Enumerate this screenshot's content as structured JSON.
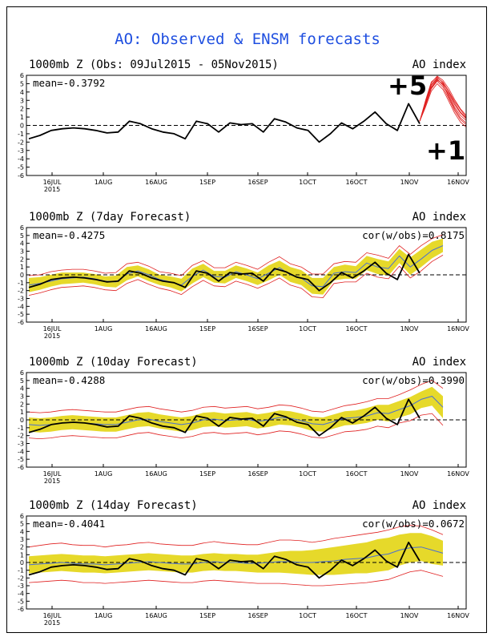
{
  "title": "AO: Observed & ENSM forecasts",
  "annotations": [
    "+5",
    "+1"
  ],
  "colors": {
    "title": "#1f4fe0",
    "observed": "#000000",
    "spread": "#e6d92a",
    "bounds": "#e02020",
    "ensemble_mean": "#4a6fd1",
    "zero_line": "#000000"
  },
  "chart_data": [
    {
      "type": "line",
      "title": "1000mb Z (Obs: 09Jul2015 - 05Nov2015)",
      "right_label": "AO index",
      "stat_mean": "mean=-0.3792",
      "stat_cor": "",
      "ylim": [
        -6,
        6
      ],
      "yticks": [
        "6",
        "5",
        "4",
        "3",
        "2",
        "1",
        "0",
        "-1",
        "-2",
        "-3",
        "-4",
        "-5",
        "-6"
      ],
      "xticks": [
        "16JUL",
        "1AUG",
        "16AUG",
        "1SEP",
        "16SEP",
        "1OCT",
        "16OCT",
        "1NOV",
        "16NOV"
      ],
      "xyear": "2015",
      "zero_dashed": true,
      "observed": [
        -1.6,
        -1.2,
        -0.6,
        -0.4,
        -0.3,
        -0.4,
        -0.6,
        -0.9,
        -0.8,
        0.5,
        0.2,
        -0.4,
        -0.8,
        -1.0,
        -1.6,
        0.5,
        0.2,
        -0.8,
        0.3,
        0.1,
        0.2,
        -0.8,
        0.8,
        0.4,
        -0.3,
        -0.6,
        -2.0,
        -1.0,
        0.3,
        -0.4,
        0.5,
        1.6,
        0.2,
        -0.6,
        2.6,
        0.2
      ],
      "members": [
        [
          0.5,
          2.6,
          4.6,
          5.5,
          4.9,
          3.6,
          2.2,
          1.2,
          0.6
        ],
        [
          0.5,
          2.8,
          4.9,
          5.7,
          5.2,
          4.1,
          2.9,
          1.9,
          1.0
        ],
        [
          0.5,
          2.4,
          4.4,
          5.3,
          4.6,
          3.2,
          1.8,
          0.7,
          0.1
        ],
        [
          0.5,
          2.9,
          5.1,
          5.9,
          5.4,
          4.4,
          3.1,
          2.0,
          1.2
        ],
        [
          0.5,
          2.2,
          4.1,
          5.0,
          4.3,
          2.9,
          1.5,
          0.4,
          -0.2
        ],
        [
          0.5,
          2.7,
          4.8,
          5.6,
          4.8,
          3.8,
          2.5,
          1.5,
          0.8
        ],
        [
          0.5,
          2.5,
          4.5,
          5.4,
          5.0,
          3.4,
          2.0,
          0.9,
          0.3
        ],
        [
          0.5,
          3.0,
          5.2,
          5.8,
          5.1,
          4.0,
          2.7,
          1.6,
          0.9
        ]
      ]
    },
    {
      "type": "line",
      "title": "1000mb Z (7day Forecast)",
      "right_label": "AO index",
      "stat_mean": "mean=-0.4275",
      "stat_cor": "cor(w/obs)=0.8175",
      "ylim": [
        -6,
        6
      ],
      "yticks": [
        "6",
        "5",
        "4",
        "3",
        "2",
        "1",
        "0",
        "-1",
        "-2",
        "-3",
        "-4",
        "-5",
        "-6"
      ],
      "xticks": [
        "16JUL",
        "1AUG",
        "16AUG",
        "1SEP",
        "16SEP",
        "1OCT",
        "16OCT",
        "1NOV",
        "16NOV"
      ],
      "xyear": "2015",
      "zero_dashed": true,
      "observed": [
        -1.6,
        -1.2,
        -0.6,
        -0.4,
        -0.3,
        -0.4,
        -0.6,
        -0.9,
        -0.8,
        0.5,
        0.2,
        -0.4,
        -0.8,
        -1.0,
        -1.6,
        0.5,
        0.2,
        -0.8,
        0.3,
        0.1,
        0.2,
        -0.8,
        0.8,
        0.4,
        -0.3,
        -0.6,
        -2.0,
        -1.0,
        0.3,
        -0.4,
        0.5,
        1.6,
        0.2,
        -0.6,
        2.6,
        0.2
      ],
      "ensemble_mean": [
        -1.3,
        -1.1,
        -0.8,
        -0.5,
        -0.4,
        -0.3,
        -0.5,
        -0.8,
        -0.9,
        0.1,
        0.5,
        0.0,
        -0.6,
        -0.9,
        -1.3,
        -0.2,
        0.6,
        -0.2,
        -0.3,
        0.4,
        0.0,
        -0.5,
        0.2,
        0.9,
        0.0,
        -0.4,
        -1.4,
        -1.5,
        0.2,
        0.4,
        0.3,
        1.5,
        1.0,
        0.8,
        2.4,
        1.0,
        2.0,
        3.1,
        3.7
      ],
      "spread_upper": [
        -0.4,
        -0.3,
        0.0,
        0.3,
        0.3,
        0.3,
        0.1,
        -0.2,
        -0.1,
        1.0,
        1.2,
        0.7,
        0.0,
        -0.2,
        -0.5,
        0.8,
        1.4,
        0.5,
        0.5,
        1.2,
        0.8,
        0.3,
        1.2,
        1.8,
        1.0,
        0.6,
        -0.4,
        -0.4,
        1.0,
        1.3,
        1.1,
        2.4,
        2.0,
        1.7,
        3.3,
        2.2,
        3.2,
        4.2,
        4.6
      ],
      "spread_lower": [
        -2.2,
        -1.9,
        -1.5,
        -1.2,
        -1.1,
        -1.0,
        -1.2,
        -1.5,
        -1.6,
        -0.7,
        -0.2,
        -0.8,
        -1.3,
        -1.6,
        -2.1,
        -1.1,
        -0.3,
        -1.0,
        -1.1,
        -0.4,
        -0.8,
        -1.3,
        -0.7,
        0.0,
        -0.9,
        -1.3,
        -2.4,
        -2.5,
        -0.7,
        -0.5,
        -0.5,
        0.6,
        0.1,
        -0.1,
        1.5,
        0.0,
        1.0,
        2.1,
        2.9
      ],
      "bound_upper": [
        -0.1,
        0.0,
        0.4,
        0.6,
        0.7,
        0.7,
        0.5,
        0.2,
        0.3,
        1.4,
        1.6,
        1.1,
        0.4,
        0.2,
        -0.1,
        1.2,
        1.8,
        0.9,
        0.9,
        1.6,
        1.2,
        0.7,
        1.6,
        2.3,
        1.4,
        1.0,
        0.1,
        0.1,
        1.4,
        1.7,
        1.6,
        2.8,
        2.5,
        2.1,
        3.7,
        2.6,
        3.7,
        4.6,
        5.1
      ],
      "bound_lower": [
        -2.6,
        -2.3,
        -1.9,
        -1.6,
        -1.5,
        -1.4,
        -1.6,
        -1.9,
        -2.0,
        -1.1,
        -0.6,
        -1.2,
        -1.7,
        -2.0,
        -2.5,
        -1.5,
        -0.7,
        -1.4,
        -1.5,
        -0.8,
        -1.2,
        -1.7,
        -1.1,
        -0.4,
        -1.3,
        -1.7,
        -2.8,
        -2.9,
        -1.1,
        -0.9,
        -0.9,
        0.2,
        -0.3,
        -0.5,
        1.1,
        -0.4,
        0.5,
        1.7,
        2.5
      ]
    },
    {
      "type": "line",
      "title": "1000mb Z (10day Forecast)",
      "right_label": "AO index",
      "stat_mean": "mean=-0.4288",
      "stat_cor": "cor(w/obs)=0.3990",
      "ylim": [
        -6,
        6
      ],
      "yticks": [
        "6",
        "5",
        "4",
        "3",
        "2",
        "1",
        "0",
        "-1",
        "-2",
        "-3",
        "-4",
        "-5",
        "-6"
      ],
      "xticks": [
        "16JUL",
        "1AUG",
        "16AUG",
        "1SEP",
        "16SEP",
        "1OCT",
        "16OCT",
        "1NOV",
        "16NOV"
      ],
      "xyear": "2015",
      "zero_dashed": true,
      "observed": [
        -1.6,
        -1.2,
        -0.6,
        -0.4,
        -0.3,
        -0.4,
        -0.6,
        -0.9,
        -0.8,
        0.5,
        0.2,
        -0.4,
        -0.8,
        -1.0,
        -1.6,
        0.5,
        0.2,
        -0.8,
        0.3,
        0.1,
        0.2,
        -0.8,
        0.8,
        0.4,
        -0.3,
        -0.6,
        -2.0,
        -1.0,
        0.3,
        -0.4,
        0.5,
        1.6,
        0.2,
        -0.6,
        2.6,
        0.2
      ],
      "ensemble_mean": [
        -0.6,
        -0.7,
        -0.6,
        -0.4,
        -0.3,
        -0.4,
        -0.5,
        -0.6,
        -0.6,
        -0.3,
        0.0,
        0.1,
        -0.2,
        -0.4,
        -0.6,
        -0.4,
        0.0,
        0.1,
        -0.1,
        0.0,
        0.1,
        -0.2,
        0.0,
        0.3,
        0.2,
        -0.1,
        -0.5,
        -0.6,
        -0.2,
        0.2,
        0.3,
        0.5,
        0.9,
        0.8,
        1.3,
        1.8,
        2.6,
        3.0,
        1.6
      ],
      "spread_upper": [
        0.3,
        0.2,
        0.3,
        0.5,
        0.6,
        0.5,
        0.4,
        0.3,
        0.3,
        0.6,
        0.9,
        1.0,
        0.7,
        0.5,
        0.3,
        0.5,
        0.9,
        1.0,
        0.8,
        0.9,
        1.0,
        0.7,
        0.9,
        1.2,
        1.1,
        0.8,
        0.4,
        0.3,
        0.7,
        1.1,
        1.2,
        1.5,
        1.9,
        1.9,
        2.4,
        2.9,
        3.6,
        4.2,
        3.0
      ],
      "spread_lower": [
        -1.5,
        -1.6,
        -1.5,
        -1.3,
        -1.2,
        -1.3,
        -1.4,
        -1.5,
        -1.5,
        -1.2,
        -0.9,
        -0.8,
        -1.1,
        -1.3,
        -1.5,
        -1.3,
        -0.9,
        -0.8,
        -1.0,
        -0.9,
        -0.8,
        -1.1,
        -0.9,
        -0.6,
        -0.7,
        -1.0,
        -1.4,
        -1.5,
        -1.1,
        -0.7,
        -0.6,
        -0.4,
        0.0,
        -0.2,
        0.3,
        0.7,
        1.5,
        1.8,
        0.2
      ],
      "bound_upper": [
        1.0,
        0.9,
        1.0,
        1.2,
        1.3,
        1.2,
        1.1,
        1.0,
        1.0,
        1.3,
        1.6,
        1.7,
        1.4,
        1.2,
        1.0,
        1.2,
        1.6,
        1.7,
        1.5,
        1.6,
        1.7,
        1.4,
        1.6,
        1.9,
        1.8,
        1.5,
        1.1,
        1.0,
        1.4,
        1.8,
        2.0,
        2.3,
        2.7,
        2.7,
        3.2,
        3.8,
        4.5,
        5.0,
        4.0
      ],
      "bound_lower": [
        -2.3,
        -2.4,
        -2.3,
        -2.1,
        -2.0,
        -2.1,
        -2.2,
        -2.3,
        -2.3,
        -2.0,
        -1.7,
        -1.6,
        -1.9,
        -2.1,
        -2.3,
        -2.1,
        -1.7,
        -1.6,
        -1.8,
        -1.7,
        -1.6,
        -1.9,
        -1.7,
        -1.4,
        -1.5,
        -1.8,
        -2.2,
        -2.3,
        -1.9,
        -1.5,
        -1.4,
        -1.2,
        -0.8,
        -1.0,
        -0.4,
        -0.1,
        0.6,
        0.8,
        -0.7
      ]
    },
    {
      "type": "line",
      "title": "1000mb Z (14day Forecast)",
      "right_label": "AO index",
      "stat_mean": "mean=-0.4041",
      "stat_cor": "cor(w/obs)=0.0672",
      "ylim": [
        -6,
        6
      ],
      "yticks": [
        "6",
        "5",
        "4",
        "3",
        "2",
        "1",
        "0",
        "-1",
        "-2",
        "-3",
        "-4",
        "-5",
        "-6"
      ],
      "xticks": [
        "16JUL",
        "1AUG",
        "16AUG",
        "1SEP",
        "16SEP",
        "1OCT",
        "16OCT",
        "1NOV",
        "16NOV"
      ],
      "xyear": "2015",
      "zero_dashed": true,
      "observed": [
        -1.6,
        -1.2,
        -0.6,
        -0.4,
        -0.3,
        -0.4,
        -0.6,
        -0.9,
        -0.8,
        0.5,
        0.2,
        -0.4,
        -0.8,
        -1.0,
        -1.6,
        0.5,
        0.2,
        -0.8,
        0.3,
        0.1,
        0.2,
        -0.8,
        0.8,
        0.4,
        -0.3,
        -0.6,
        -2.0,
        -1.0,
        0.3,
        -0.4,
        0.5,
        1.6,
        0.2,
        -0.6,
        2.6,
        0.2
      ],
      "ensemble_mean": [
        -0.3,
        -0.2,
        -0.1,
        0.0,
        -0.1,
        -0.2,
        -0.2,
        -0.3,
        -0.2,
        -0.1,
        0.0,
        0.1,
        0.0,
        -0.1,
        -0.2,
        -0.2,
        0.0,
        0.1,
        0.0,
        0.0,
        -0.1,
        -0.1,
        0.0,
        0.1,
        0.1,
        0.0,
        0.0,
        0.1,
        0.2,
        0.4,
        0.5,
        0.6,
        0.9,
        1.1,
        1.6,
        1.9,
        2.0,
        1.6,
        1.2
      ],
      "spread_upper": [
        0.8,
        0.9,
        1.0,
        1.1,
        1.0,
        0.9,
        0.9,
        0.8,
        0.9,
        1.0,
        1.1,
        1.2,
        1.1,
        1.0,
        0.9,
        0.9,
        1.1,
        1.2,
        1.1,
        1.1,
        1.0,
        1.0,
        1.2,
        1.4,
        1.5,
        1.5,
        1.6,
        1.8,
        2.0,
        2.2,
        2.4,
        2.6,
        3.0,
        3.2,
        3.6,
        3.8,
        3.8,
        3.4,
        2.8
      ],
      "spread_lower": [
        -1.4,
        -1.3,
        -1.2,
        -1.1,
        -1.2,
        -1.3,
        -1.3,
        -1.4,
        -1.3,
        -1.2,
        -1.1,
        -1.0,
        -1.1,
        -1.2,
        -1.3,
        -1.3,
        -1.1,
        -1.0,
        -1.1,
        -1.1,
        -1.2,
        -1.3,
        -1.3,
        -1.3,
        -1.4,
        -1.5,
        -1.6,
        -1.6,
        -1.6,
        -1.5,
        -1.4,
        -1.4,
        -1.2,
        -1.0,
        -0.4,
        0.0,
        0.2,
        -0.2,
        -0.4
      ],
      "bound_upper": [
        2.0,
        2.2,
        2.4,
        2.5,
        2.3,
        2.2,
        2.2,
        2.0,
        2.2,
        2.3,
        2.5,
        2.6,
        2.4,
        2.3,
        2.2,
        2.2,
        2.5,
        2.7,
        2.5,
        2.4,
        2.3,
        2.3,
        2.6,
        2.9,
        2.9,
        2.8,
        2.6,
        2.8,
        3.1,
        3.3,
        3.5,
        3.7,
        3.9,
        4.2,
        4.6,
        4.8,
        4.7,
        4.2,
        3.6
      ],
      "bound_lower": [
        -2.6,
        -2.5,
        -2.4,
        -2.3,
        -2.4,
        -2.6,
        -2.6,
        -2.7,
        -2.6,
        -2.5,
        -2.4,
        -2.3,
        -2.4,
        -2.5,
        -2.6,
        -2.6,
        -2.4,
        -2.3,
        -2.4,
        -2.5,
        -2.6,
        -2.7,
        -2.7,
        -2.7,
        -2.8,
        -2.9,
        -3.0,
        -3.0,
        -2.9,
        -2.8,
        -2.7,
        -2.6,
        -2.4,
        -2.2,
        -1.7,
        -1.2,
        -1.0,
        -1.4,
        -1.8
      ]
    }
  ]
}
